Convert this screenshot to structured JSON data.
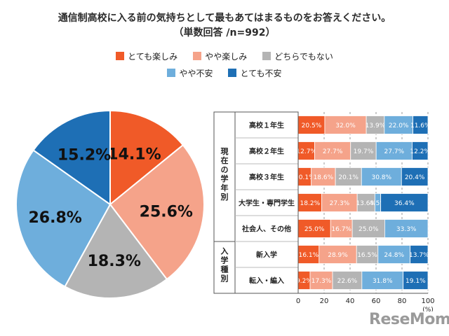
{
  "title": {
    "line1": "通信制高校に入る前の気持ちとして最もあてはまるものをお答えください。",
    "line2": "（単数回答 /n=992）"
  },
  "colors": {
    "とても楽しみ": "#F05A28",
    "やや楽しみ": "#F5A38A",
    "どちらでもない": "#B4B4B4",
    "やや不安": "#6EAEDC",
    "とても不安": "#1E6FB5"
  },
  "watermark": "ReseMom",
  "chart_data": [
    {
      "type": "pie",
      "categories": [
        "とても楽しみ",
        "やや楽しみ",
        "どちらでもない",
        "やや不安",
        "とても不安"
      ],
      "values": [
        14.1,
        25.6,
        18.3,
        26.8,
        15.2
      ],
      "labels": [
        "14.1%",
        "25.6%",
        "18.3%",
        "26.8%",
        "15.2%"
      ],
      "start_angle_deg": 0,
      "direction": "clockwise",
      "legend": "top"
    },
    {
      "type": "bar",
      "orientation": "horizontal",
      "stacked": true,
      "series_names": [
        "とても楽しみ",
        "やや楽しみ",
        "どちらでもない",
        "やや不安",
        "とても不安"
      ],
      "groups": [
        {
          "label": "現在の学年別",
          "rows": [
            "高校１年生",
            "高校２年生",
            "高校３年生",
            "大学生・専門学生",
            "社会人、その他"
          ]
        },
        {
          "label": "入学種別",
          "rows": [
            "新入学",
            "転入・編入"
          ]
        }
      ],
      "rows": [
        {
          "category": "高校１年生",
          "values": [
            20.5,
            32.0,
            13.9,
            22.0,
            11.6
          ]
        },
        {
          "category": "高校２年生",
          "values": [
            12.7,
            27.7,
            19.7,
            27.7,
            12.2
          ]
        },
        {
          "category": "高校３年生",
          "values": [
            10.1,
            18.6,
            20.1,
            30.8,
            20.4
          ]
        },
        {
          "category": "大学生・専門学生",
          "values": [
            18.2,
            27.3,
            13.6,
            4.5,
            36.4
          ]
        },
        {
          "category": "社会人、その他",
          "values": [
            25.0,
            16.7,
            25.0,
            33.3,
            0
          ]
        },
        {
          "category": "新入学",
          "values": [
            16.1,
            28.9,
            16.5,
            24.8,
            13.7
          ]
        },
        {
          "category": "転入・編入",
          "values": [
            9.2,
            17.3,
            22.6,
            31.8,
            19.1
          ]
        }
      ],
      "data_labels": [
        [
          "20.5%",
          "32.0%",
          "13.9%",
          "22.0%",
          "11.6%"
        ],
        [
          "12.7%",
          "27.7%",
          "19.7%",
          "27.7%",
          "12.2%"
        ],
        [
          "10.1%",
          "18.6%",
          "20.1%",
          "30.8%",
          "20.4%"
        ],
        [
          "18.2%",
          "27.3%",
          "13.6%",
          "4.5%",
          "36.4%"
        ],
        [
          "25.0%",
          "16.7%",
          "25.0%",
          "33.3%",
          ""
        ],
        [
          "16.1%",
          "28.9%",
          "16.5%",
          "24.8%",
          "13.7%"
        ],
        [
          "9.2%",
          "17.3%",
          "22.6%",
          "31.8%",
          "19.1%"
        ]
      ],
      "xlim": [
        0,
        100
      ],
      "xticks": [
        "0",
        "20",
        "40",
        "60",
        "80",
        "100"
      ],
      "xunit": "(%)",
      "grid": true,
      "grid_style": "dashed",
      "legend": "shared-top"
    }
  ]
}
